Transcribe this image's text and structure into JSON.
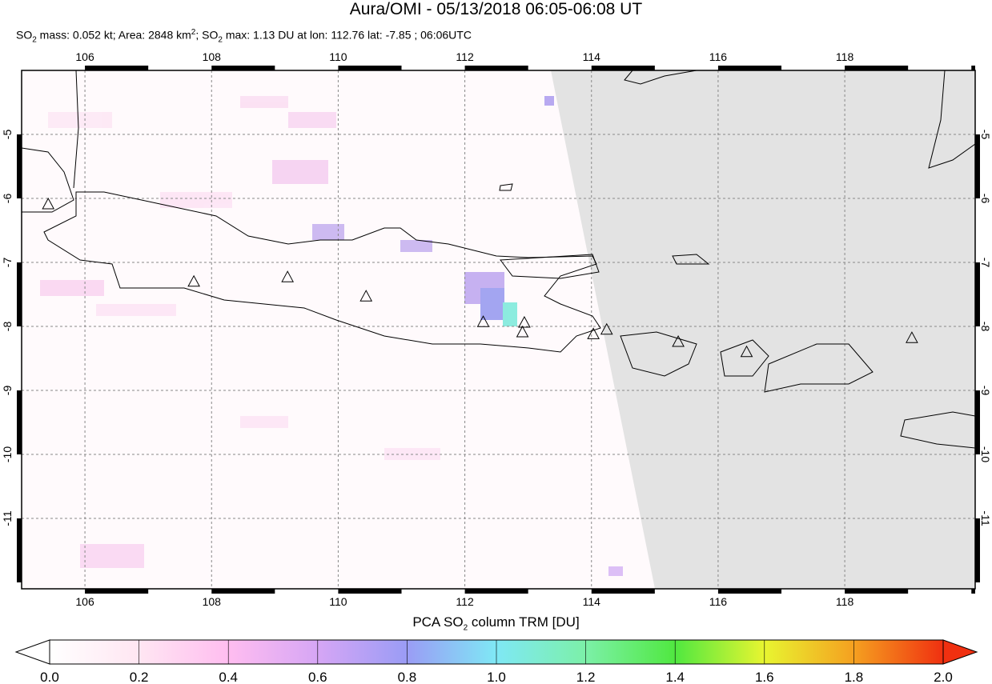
{
  "title": "Aura/OMI - 05/13/2018 06:05-06:08 UT",
  "subtitle": [
    "SO",
    "2",
    " mass: 0.052 kt; Area: 2848 km",
    "2",
    "; SO",
    "2",
    " max: 1.13 DU at lon: 112.76 lat: -7.85 ; 06:06UTC"
  ],
  "map": {
    "xlim": [
      105,
      120.06
    ],
    "ylim": [
      -12.1,
      -4
    ],
    "xticks": [
      106,
      108,
      110,
      112,
      114,
      116,
      118
    ],
    "yticks": [
      -5,
      -6,
      -7,
      -8,
      -9,
      -10,
      -11
    ]
  },
  "volcanoes": [
    {
      "lon": 105.42,
      "lat": -6.1
    },
    {
      "lon": 107.72,
      "lat": -7.31
    },
    {
      "lon": 109.2,
      "lat": -7.24
    },
    {
      "lon": 110.44,
      "lat": -7.54
    },
    {
      "lon": 112.29,
      "lat": -7.94
    },
    {
      "lon": 112.94,
      "lat": -7.95
    },
    {
      "lon": 112.91,
      "lat": -8.1
    },
    {
      "lon": 114.03,
      "lat": -8.13
    },
    {
      "lon": 114.24,
      "lat": -8.06
    },
    {
      "lon": 115.37,
      "lat": -8.25
    },
    {
      "lon": 116.45,
      "lat": -8.41
    },
    {
      "lon": 119.06,
      "lat": -8.19
    }
  ],
  "colorbar": {
    "label": [
      "PCA SO",
      "2",
      " column TRM [DU]"
    ],
    "lim": [
      0,
      2
    ],
    "ticks": [
      {
        "value": 0,
        "label": "0.0"
      },
      {
        "value": 0.2,
        "label": "0.2"
      },
      {
        "value": 0.4,
        "label": "0.4"
      },
      {
        "value": 0.6,
        "label": "0.6"
      },
      {
        "value": 0.8,
        "label": "0.8"
      },
      {
        "value": 1,
        "label": "1.0"
      },
      {
        "value": 1.2,
        "label": "1.2"
      },
      {
        "value": 1.4,
        "label": "1.4"
      },
      {
        "value": 1.6,
        "label": "1.6"
      },
      {
        "value": 1.8,
        "label": "1.8"
      },
      {
        "value": 2,
        "label": "2.0"
      }
    ]
  }
}
